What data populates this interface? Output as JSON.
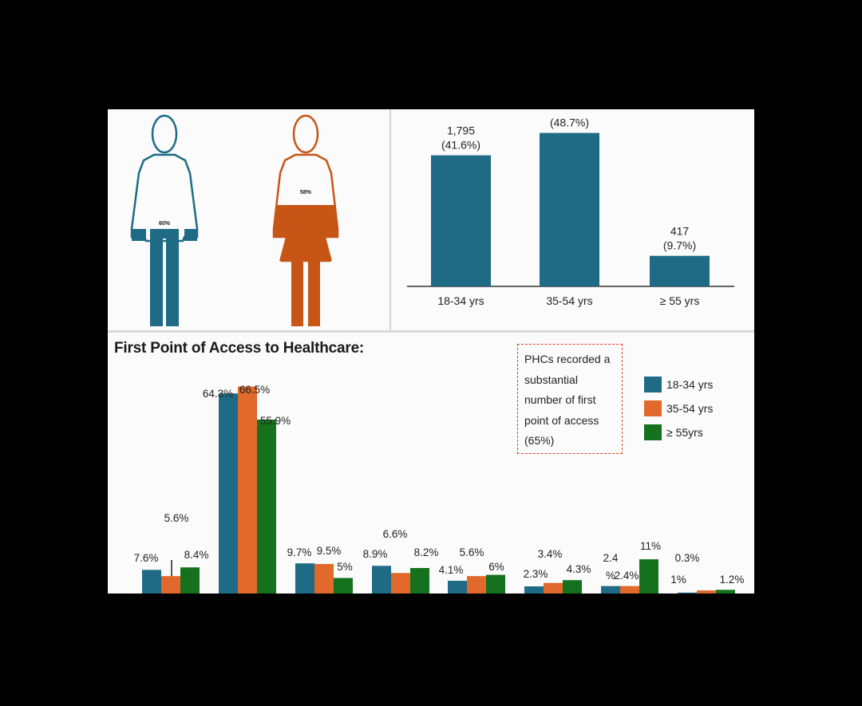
{
  "colors": {
    "teal": "#1f6b86",
    "orange": "#e0692b",
    "green": "#16711f",
    "figure_female": "#c65516"
  },
  "figures": [
    {
      "name": "male-figure",
      "label": "60%",
      "color": "#1f6b86"
    },
    {
      "name": "female-figure",
      "label": "58%",
      "color": "#c65516"
    }
  ],
  "chart_data": [
    {
      "type": "bar",
      "categories": [
        "18-34 yrs",
        "35-54 yrs",
        "≥ 55 yrs"
      ],
      "values": [
        41.6,
        48.7,
        9.7
      ],
      "data_labels": [
        [
          "1,795",
          "(41.6%)"
        ],
        [
          "(48.7%)"
        ],
        [
          "417",
          "(9.7%)"
        ]
      ],
      "color": "#1f6b86"
    },
    {
      "type": "bar",
      "title": "First Point of Access to Healthcare:",
      "groups": 8,
      "series": [
        {
          "name": "18-34 yrs",
          "color": "#1f6b86",
          "values": [
            7.6,
            64.3,
            9.7,
            8.9,
            4.1,
            2.3,
            2.4,
            0.3
          ],
          "labels": [
            "7.6%",
            "64.3%",
            "9.7%",
            "8.9%",
            "4.1%",
            "2.3%",
            "2.4 %",
            "0.3%"
          ]
        },
        {
          "name": "35-54 yrs",
          "color": "#e0692b",
          "values": [
            5.6,
            66.5,
            9.5,
            6.6,
            5.6,
            3.4,
            2.4,
            1
          ],
          "labels": [
            "5.6%",
            "66.5%",
            "9.5%",
            "6.6%",
            "5.6%",
            "3.4%",
            "2.4%",
            "1%"
          ]
        },
        {
          "name": "≥ 55yrs",
          "color": "#16711f",
          "values": [
            8.4,
            55.9,
            5,
            8.2,
            6,
            4.3,
            11,
            1.2
          ],
          "labels": [
            "8.4%",
            "55.9%",
            "5%",
            "8.2%",
            "6%",
            "4.3%",
            "11%",
            "1.2%"
          ]
        }
      ],
      "annotation": [
        "PHCs recorded a",
        "substantial",
        "number of first",
        "point of access",
        "(65%)"
      ]
    }
  ]
}
